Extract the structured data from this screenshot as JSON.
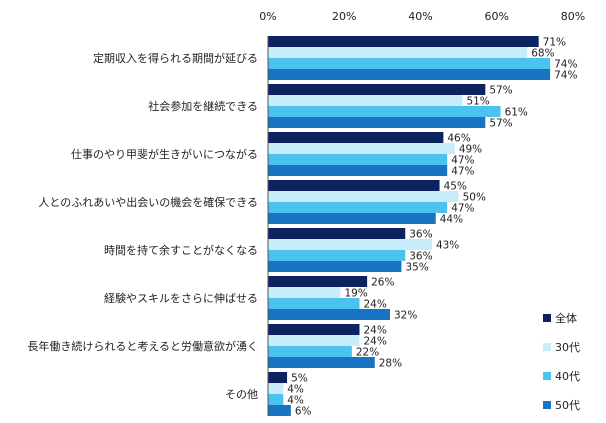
{
  "chart_data": {
    "type": "bar",
    "orientation": "horizontal",
    "categories": [
      "定期収入を得られる期間が延びる",
      "社会参加を継続できる",
      "仕事のやり甲斐が生きがいにつながる",
      "人とのふれあいや出会いの機会を確保できる",
      "時間を持て余すことがなくなる",
      "経験やスキルをさらに伸ばせる",
      "長年働き続けられると考えると労働意欲が湧く",
      "その他"
    ],
    "series": [
      {
        "name": "全体",
        "color": "#0d2260",
        "values": [
          71,
          57,
          46,
          45,
          36,
          26,
          24,
          5
        ]
      },
      {
        "name": "30代",
        "color": "#c9ecfa",
        "values": [
          68,
          51,
          49,
          50,
          43,
          19,
          24,
          4
        ]
      },
      {
        "name": "40代",
        "color": "#4cc3ef",
        "values": [
          74,
          61,
          47,
          47,
          36,
          24,
          22,
          4
        ]
      },
      {
        "name": "50代",
        "color": "#1874c2",
        "values": [
          74,
          57,
          47,
          44,
          35,
          32,
          28,
          6
        ]
      }
    ],
    "value_suffix": "%",
    "xlim": [
      0,
      80
    ],
    "xticks": [
      "0%",
      "20%",
      "40%",
      "60%",
      "80%"
    ],
    "legend_position": "right-bottom",
    "grid": false
  }
}
